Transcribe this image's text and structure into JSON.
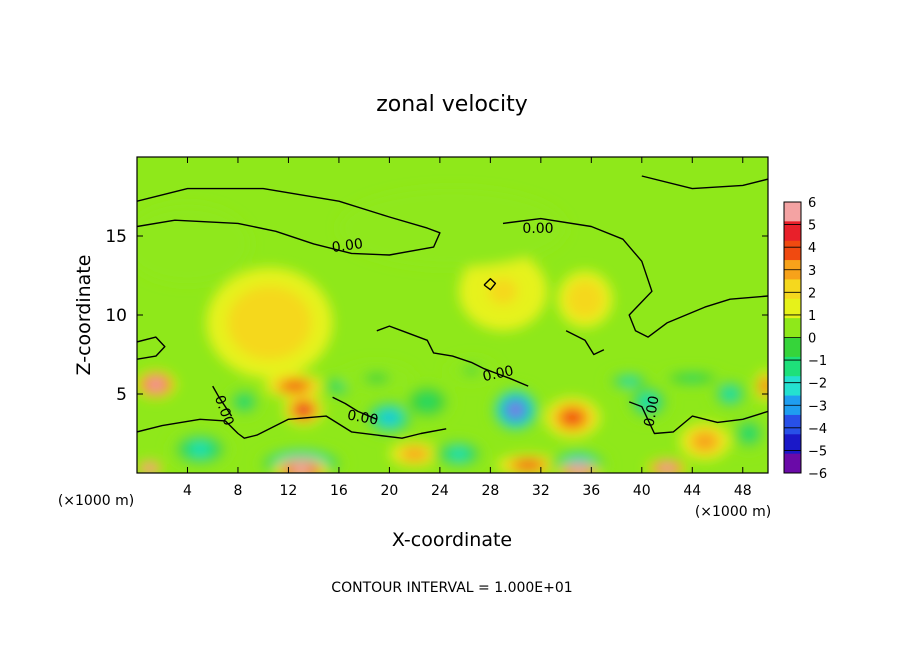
{
  "chart_data": {
    "type": "heatmap",
    "title": "zonal velocity",
    "xlabel": "X-coordinate",
    "ylabel": "Z-coordinate",
    "x_unit": "(×1000 m)",
    "footer": "CONTOUR INTERVAL = 1.000E+01",
    "xlim": [
      0,
      50
    ],
    "ylim": [
      0,
      20
    ],
    "x_ticks": [
      4,
      8,
      12,
      16,
      20,
      24,
      28,
      32,
      36,
      40,
      44,
      48
    ],
    "y_ticks": [
      5,
      10,
      15
    ],
    "colorbar": {
      "ticks": [
        "6",
        "5",
        "4",
        "3",
        "2",
        "1",
        "0",
        "−1",
        "−2",
        "−3",
        "−4",
        "−5",
        "−6"
      ],
      "colors": [
        "#f4a3a3",
        "#e8202a",
        "#f04a10",
        "#f7a21a",
        "#f5d81e",
        "#e6f21a",
        "#8fe81a",
        "#36d43a",
        "#1ee07a",
        "#24e0d0",
        "#1f9ef0",
        "#2850e8",
        "#1a18c8",
        "#6a0aa8"
      ]
    },
    "contour_labels": [
      "0.00",
      "0.00",
      "0.00",
      "0.00",
      "0.00",
      "0.00"
    ],
    "features": [
      {
        "x": 1.5,
        "z": 5.6,
        "value": 7,
        "rx": 1.6,
        "rz": 0.9
      },
      {
        "x": 12.5,
        "z": 5.5,
        "value": 4,
        "rx": 2.4,
        "rz": 0.8
      },
      {
        "x": 13.2,
        "z": 4.0,
        "value": 5,
        "rx": 1.6,
        "rz": 1.0
      },
      {
        "x": 10.5,
        "z": 9.5,
        "value": 2,
        "rx": 5,
        "rz": 3.5
      },
      {
        "x": 30,
        "z": 4.0,
        "value": -7,
        "rx": 2.0,
        "rz": 1.5
      },
      {
        "x": 34.5,
        "z": 3.5,
        "value": 4,
        "rx": 2.2,
        "rz": 1.3
      },
      {
        "x": 35.5,
        "z": 11.0,
        "value": 2,
        "rx": 2.2,
        "rz": 1.8
      },
      {
        "x": 29,
        "z": 11.5,
        "value": 1.2,
        "rx": 3.5,
        "rz": 2.5
      },
      {
        "x": 5,
        "z": 1.5,
        "value": -3,
        "rx": 2.5,
        "rz": 1.2
      },
      {
        "x": 13,
        "z": 0.6,
        "value": -6,
        "rx": 3.5,
        "rz": 1.0
      },
      {
        "x": 13,
        "z": 0.2,
        "value": 7,
        "rx": 2.2,
        "rz": 0.7
      },
      {
        "x": 1,
        "z": 0.3,
        "value": 7,
        "rx": 1.0,
        "rz": 0.5
      },
      {
        "x": 20,
        "z": 3.5,
        "value": -4,
        "rx": 2.2,
        "rz": 1.2
      },
      {
        "x": 23,
        "z": 4.5,
        "value": -2.5,
        "rx": 2.0,
        "rz": 1.2
      },
      {
        "x": 22,
        "z": 1.2,
        "value": 3,
        "rx": 2.0,
        "rz": 0.8
      },
      {
        "x": 25.5,
        "z": 1.2,
        "value": -3,
        "rx": 2.2,
        "rz": 1.0
      },
      {
        "x": 31,
        "z": 0.5,
        "value": 4,
        "rx": 2.5,
        "rz": 0.7
      },
      {
        "x": 35,
        "z": 0.5,
        "value": -5,
        "rx": 2.4,
        "rz": 1.0
      },
      {
        "x": 35,
        "z": 0.1,
        "value": 7,
        "rx": 1.8,
        "rz": 0.5
      },
      {
        "x": 40.5,
        "z": 4.5,
        "value": -3,
        "rx": 1.8,
        "rz": 1.2
      },
      {
        "x": 39,
        "z": 5.8,
        "value": -3,
        "rx": 1.8,
        "rz": 0.6
      },
      {
        "x": 42,
        "z": 0.3,
        "value": 7,
        "rx": 1.6,
        "rz": 0.6
      },
      {
        "x": 45,
        "z": 2.0,
        "value": 3,
        "rx": 2.0,
        "rz": 1.2
      },
      {
        "x": 47,
        "z": 5.0,
        "value": -3,
        "rx": 1.5,
        "rz": 1.0
      },
      {
        "x": 48.5,
        "z": 2.5,
        "value": -2,
        "rx": 1.5,
        "rz": 1.2
      },
      {
        "x": 49.8,
        "z": 5.5,
        "value": 4,
        "rx": 0.8,
        "rz": 1.0
      },
      {
        "x": 8.5,
        "z": 4.5,
        "value": -2,
        "rx": 1.5,
        "rz": 1.0
      },
      {
        "x": 16,
        "z": 5.5,
        "value": -2,
        "rx": 1.5,
        "rz": 0.8
      },
      {
        "x": 19,
        "z": 6.0,
        "value": -1.5,
        "rx": 3.0,
        "rz": 1.0
      },
      {
        "x": 26.5,
        "z": 6.5,
        "value": -1.5,
        "rx": 2.0,
        "rz": 0.8
      },
      {
        "x": 44,
        "z": 6.0,
        "value": -2.5,
        "rx": 2.5,
        "rz": 0.5
      },
      {
        "x": 25,
        "z": 15.5,
        "value": -0.6,
        "rx": 9,
        "rz": 2.5
      },
      {
        "x": 4,
        "z": 14.5,
        "value": -0.5,
        "rx": 5,
        "rz": 2.5
      }
    ],
    "contours": [
      {
        "value": 0,
        "points": [
          [
            0,
            17.2
          ],
          [
            4,
            18.0
          ],
          [
            10,
            18.0
          ],
          [
            16,
            17.2
          ],
          [
            20,
            16.2
          ],
          [
            23,
            15.5
          ],
          [
            24,
            15.2
          ],
          [
            23.5,
            14.3
          ],
          [
            20,
            13.8
          ],
          [
            17,
            13.9
          ],
          [
            14,
            14.5
          ],
          [
            11,
            15.3
          ],
          [
            8,
            15.8
          ],
          [
            3,
            16.0
          ],
          [
            0,
            15.6
          ]
        ]
      },
      {
        "value": 0,
        "points": [
          [
            29,
            15.8
          ],
          [
            32,
            16.1
          ],
          [
            36,
            15.6
          ],
          [
            38.5,
            14.8
          ],
          [
            40,
            13.4
          ],
          [
            40.8,
            11.5
          ],
          [
            39,
            10.0
          ],
          [
            39.5,
            9.0
          ],
          [
            40.5,
            8.6
          ],
          [
            42,
            9.5
          ],
          [
            45,
            10.5
          ],
          [
            47,
            11.0
          ],
          [
            50,
            11.2
          ]
        ]
      },
      {
        "value": 0,
        "points": [
          [
            40,
            18.8
          ],
          [
            44,
            18.0
          ],
          [
            48,
            18.2
          ],
          [
            50,
            18.6
          ]
        ]
      },
      {
        "value": 0,
        "points": [
          [
            0,
            8.3
          ],
          [
            1.5,
            8.6
          ],
          [
            2.2,
            8.0
          ],
          [
            1.5,
            7.4
          ],
          [
            0,
            7.2
          ]
        ]
      },
      {
        "value": 0,
        "points": [
          [
            0,
            2.6
          ],
          [
            2,
            3.0
          ],
          [
            5,
            3.4
          ],
          [
            7,
            3.3
          ],
          [
            8,
            2.5
          ],
          [
            8.5,
            2.2
          ],
          [
            9.5,
            2.4
          ],
          [
            12,
            3.4
          ],
          [
            15,
            3.6
          ],
          [
            17,
            2.6
          ],
          [
            19,
            2.4
          ],
          [
            21,
            2.2
          ],
          [
            22.5,
            2.5
          ],
          [
            24.5,
            2.8
          ]
        ]
      },
      {
        "value": 0,
        "points": [
          [
            19,
            9.0
          ],
          [
            20,
            9.3
          ],
          [
            21,
            9.0
          ],
          [
            23,
            8.4
          ],
          [
            23.5,
            7.6
          ],
          [
            25,
            7.4
          ],
          [
            26.5,
            7.0
          ],
          [
            27.5,
            6.6
          ],
          [
            28.5,
            6.3
          ],
          [
            29.5,
            6.0
          ],
          [
            31,
            5.5
          ]
        ]
      },
      {
        "value": 0,
        "points": [
          [
            39,
            4.5
          ],
          [
            40,
            4.2
          ],
          [
            41,
            2.5
          ],
          [
            42.5,
            2.6
          ],
          [
            44,
            3.6
          ],
          [
            46,
            3.2
          ],
          [
            48,
            3.4
          ],
          [
            50,
            3.9
          ]
        ]
      },
      {
        "value": 0,
        "points": [
          [
            34,
            9.0
          ],
          [
            35.5,
            8.4
          ],
          [
            36.2,
            7.5
          ],
          [
            37,
            7.8
          ]
        ]
      },
      {
        "value": 0,
        "points": [
          [
            15.5,
            4.8
          ],
          [
            16.5,
            4.4
          ],
          [
            17.5,
            3.9
          ],
          [
            19,
            3.4
          ]
        ]
      },
      {
        "value": 0,
        "points": [
          [
            6,
            5.5
          ],
          [
            6.5,
            4.8
          ],
          [
            7,
            4.2
          ],
          [
            7.5,
            3.6
          ]
        ]
      },
      {
        "value": 0,
        "points": [
          [
            27.5,
            11.9
          ],
          [
            28,
            12.3
          ],
          [
            28.4,
            12.0
          ],
          [
            28,
            11.6
          ],
          [
            27.5,
            11.9
          ]
        ]
      }
    ]
  }
}
